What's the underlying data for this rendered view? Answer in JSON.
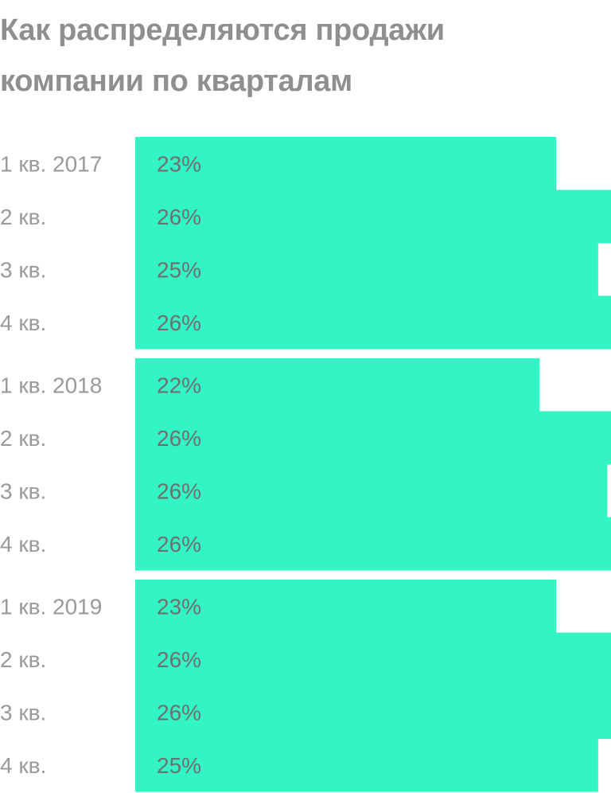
{
  "title": "Как распределяются продажи компании по кварталам",
  "colors": {
    "bar": "#33f4c5",
    "title": "#8f8f8f",
    "label": "#9a9a9a",
    "value": "#6f6f6f"
  },
  "chart_data": {
    "type": "bar",
    "orientation": "horizontal",
    "title": "Как распределяются продажи компании по кварталам",
    "xlabel": "",
    "ylabel": "",
    "xlim": [
      0,
      26
    ],
    "grid": false,
    "groups": [
      {
        "bars": [
          {
            "label": "1 кв. 2017",
            "value": 23,
            "value_label": "23%"
          },
          {
            "label": "2 кв.",
            "value": 26.1,
            "value_label": "26%"
          },
          {
            "label": "3 кв.",
            "value": 25.3,
            "value_label": "25%"
          },
          {
            "label": "4 кв.",
            "value": 26.1,
            "value_label": "26%"
          }
        ]
      },
      {
        "bars": [
          {
            "label": "1 кв. 2018",
            "value": 22.1,
            "value_label": "22%"
          },
          {
            "label": "2 кв.",
            "value": 26.1,
            "value_label": "26%"
          },
          {
            "label": "3 кв.",
            "value": 25.8,
            "value_label": "26%"
          },
          {
            "label": "4 кв.",
            "value": 26.1,
            "value_label": "26%"
          }
        ]
      },
      {
        "bars": [
          {
            "label": "1 кв. 2019",
            "value": 23,
            "value_label": "23%"
          },
          {
            "label": "2 кв.",
            "value": 26.1,
            "value_label": "26%"
          },
          {
            "label": "3 кв.",
            "value": 26.1,
            "value_label": "26%"
          },
          {
            "label": "4 кв.",
            "value": 25.3,
            "value_label": "25%"
          }
        ]
      }
    ]
  }
}
